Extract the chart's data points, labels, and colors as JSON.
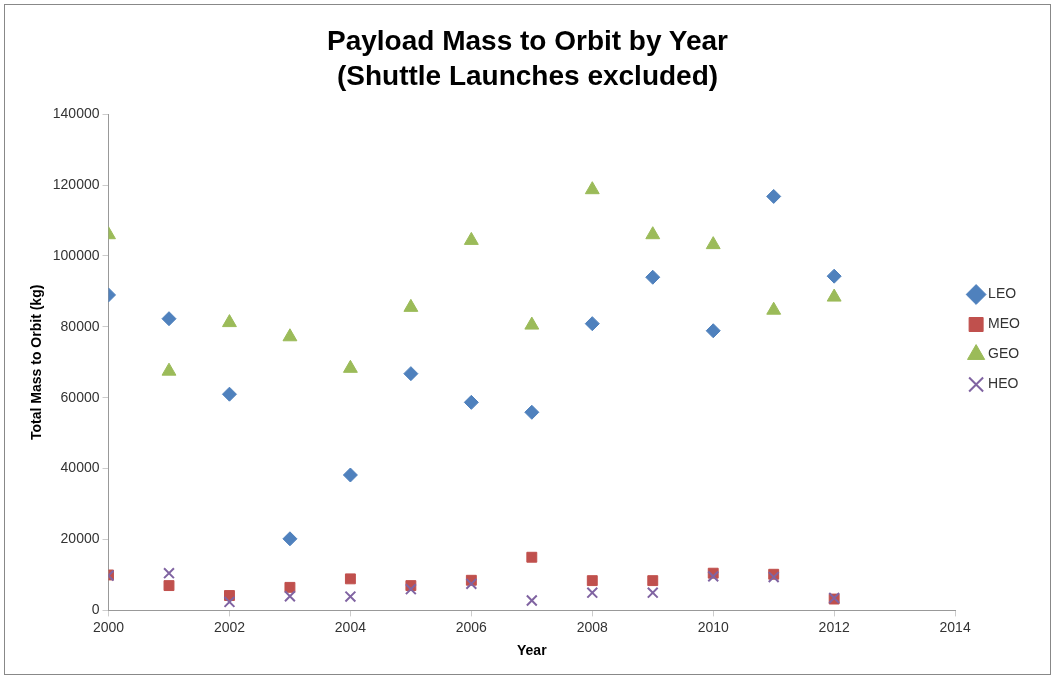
{
  "chart_data": {
    "type": "scatter",
    "title": "Payload Mass to Orbit by Year",
    "subtitle": "(Shuttle Launches excluded)",
    "xlabel": "Year",
    "ylabel": "Total Mass to Orbit (kg)",
    "x": [
      2000,
      2001,
      2002,
      2003,
      2004,
      2005,
      2006,
      2007,
      2008,
      2009,
      2010,
      2011,
      2012
    ],
    "series": [
      {
        "name": "LEO",
        "color": "#4f81bd",
        "marker": "diamond",
        "values": [
          89000,
          82300,
          61000,
          20200,
          38200,
          66800,
          58700,
          55900,
          80900,
          94000,
          78900,
          116800,
          94300
        ]
      },
      {
        "name": "MEO",
        "color": "#c0504d",
        "marker": "square",
        "values": [
          10000,
          7000,
          4200,
          6500,
          8900,
          7000,
          8500,
          15000,
          8400,
          8400,
          10500,
          10200,
          3200
        ]
      },
      {
        "name": "GEO",
        "color": "#9bbb59",
        "marker": "triangle",
        "values": [
          106000,
          67500,
          81200,
          77200,
          68300,
          85500,
          104400,
          80500,
          118700,
          106000,
          103200,
          84700,
          88400
        ]
      },
      {
        "name": "HEO",
        "color": "#8064a2",
        "marker": "cross",
        "values": [
          9800,
          10500,
          2400,
          4000,
          3900,
          6000,
          7500,
          2800,
          5000,
          5000,
          9600,
          9400,
          3500
        ]
      }
    ],
    "xlim": [
      2000,
      2014
    ],
    "xticks": [
      2000,
      2002,
      2004,
      2006,
      2008,
      2010,
      2012,
      2014
    ],
    "ylim": [
      0,
      140000
    ],
    "yticks": [
      0,
      20000,
      40000,
      60000,
      80000,
      100000,
      120000,
      140000
    ],
    "grid": false,
    "legend": "right"
  }
}
